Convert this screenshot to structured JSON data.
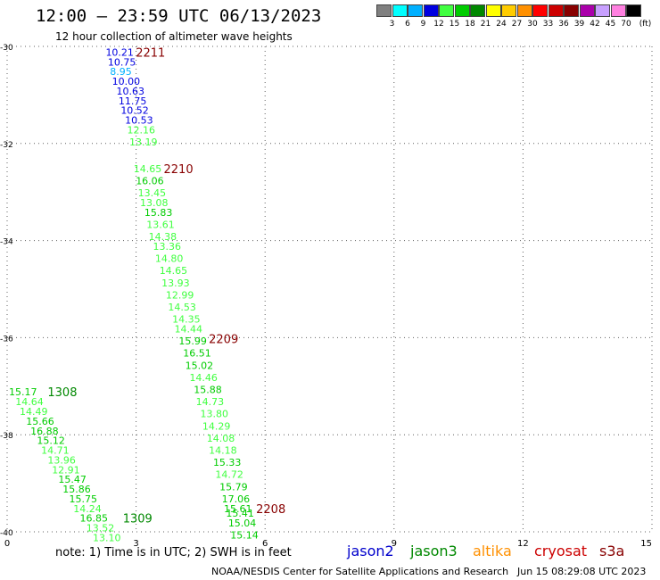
{
  "header": {
    "title": "12:00 – 23:59 UTC 06/13/2023",
    "subtitle": "12 hour collection of altimeter wave heights"
  },
  "colorbar": {
    "unit_label": "(ft)",
    "bins": [
      {
        "label": "3",
        "color": "#808080"
      },
      {
        "label": "6",
        "color": "#00ffff"
      },
      {
        "label": "9",
        "color": "#00b0ff"
      },
      {
        "label": "12",
        "color": "#0000e0"
      },
      {
        "label": "15",
        "color": "#40ff40"
      },
      {
        "label": "18",
        "color": "#00cc00"
      },
      {
        "label": "21",
        "color": "#008800"
      },
      {
        "label": "24",
        "color": "#ffff00"
      },
      {
        "label": "27",
        "color": "#ffcc00"
      },
      {
        "label": "30",
        "color": "#ff9000"
      },
      {
        "label": "33",
        "color": "#ff0000"
      },
      {
        "label": "36",
        "color": "#cc0000"
      },
      {
        "label": "39",
        "color": "#880000"
      },
      {
        "label": "42",
        "color": "#aa00aa"
      },
      {
        "label": "45",
        "color": "#c8a0ff"
      },
      {
        "label": "70",
        "color": "#ff80e0"
      },
      {
        "label": "",
        "color": "#000000"
      }
    ]
  },
  "chart_data": {
    "type": "scatter",
    "xlim": [
      0,
      15
    ],
    "ylim": [
      -40,
      -30
    ],
    "x_ticks": [
      {
        "value": 0,
        "label": "0"
      },
      {
        "value": 3,
        "label": "3"
      },
      {
        "value": 6,
        "label": "6"
      },
      {
        "value": 9,
        "label": "9"
      },
      {
        "value": 12,
        "label": "12"
      },
      {
        "value": 15,
        "label": "15"
      }
    ],
    "y_ticks": [
      {
        "value": -30,
        "label": "-30"
      },
      {
        "value": -32,
        "label": "-32"
      },
      {
        "value": -34,
        "label": "-34"
      },
      {
        "value": -36,
        "label": "-36"
      },
      {
        "value": -38,
        "label": "-38"
      },
      {
        "value": -40,
        "label": "-40"
      }
    ],
    "grid": true,
    "track_labels": [
      {
        "text": "2211",
        "x": 2.95,
        "y": -30.1,
        "color": "#880000"
      },
      {
        "text": "2210",
        "x": 3.6,
        "y": -32.5,
        "color": "#880000"
      },
      {
        "text": "2209",
        "x": 4.65,
        "y": -36.0,
        "color": "#880000"
      },
      {
        "text": "2208",
        "x": 5.75,
        "y": -39.5,
        "color": "#880000"
      },
      {
        "text": "1308",
        "x": 0.9,
        "y": -37.1,
        "color": "#008800"
      },
      {
        "text": "1309",
        "x": 2.65,
        "y": -39.7,
        "color": "#008800"
      }
    ],
    "points": [
      {
        "text": "10.21",
        "x": 2.25,
        "y": -30.1,
        "color": "#0000e0"
      },
      {
        "text": "10.75",
        "x": 2.3,
        "y": -30.3,
        "color": "#0000e0"
      },
      {
        "text": "8.95",
        "x": 2.35,
        "y": -30.5,
        "color": "#00b0ff"
      },
      {
        "text": "10.00",
        "x": 2.4,
        "y": -30.7,
        "color": "#0000e0"
      },
      {
        "text": "10.63",
        "x": 2.5,
        "y": -30.9,
        "color": "#0000e0"
      },
      {
        "text": "11.75",
        "x": 2.55,
        "y": -31.1,
        "color": "#0000e0"
      },
      {
        "text": "10.52",
        "x": 2.6,
        "y": -31.3,
        "color": "#0000e0"
      },
      {
        "text": "10.53",
        "x": 2.7,
        "y": -31.5,
        "color": "#0000e0"
      },
      {
        "text": "12.16",
        "x": 2.75,
        "y": -31.7,
        "color": "#40ff40"
      },
      {
        "text": "13.19",
        "x": 2.8,
        "y": -31.95,
        "color": "#40ff40"
      },
      {
        "text": "14.65",
        "x": 2.9,
        "y": -32.5,
        "color": "#40ff40"
      },
      {
        "text": "16.06",
        "x": 2.95,
        "y": -32.75,
        "color": "#00cc00"
      },
      {
        "text": "13.45",
        "x": 3.0,
        "y": -33.0,
        "color": "#40ff40"
      },
      {
        "text": "13.08",
        "x": 3.05,
        "y": -33.2,
        "color": "#40ff40"
      },
      {
        "text": "15.83",
        "x": 3.15,
        "y": -33.4,
        "color": "#00cc00"
      },
      {
        "text": "13.61",
        "x": 3.2,
        "y": -33.65,
        "color": "#40ff40"
      },
      {
        "text": "14.38",
        "x": 3.25,
        "y": -33.9,
        "color": "#40ff40"
      },
      {
        "text": "13.36",
        "x": 3.35,
        "y": -34.1,
        "color": "#40ff40"
      },
      {
        "text": "14.80",
        "x": 3.4,
        "y": -34.35,
        "color": "#40ff40"
      },
      {
        "text": "14.65",
        "x": 3.5,
        "y": -34.6,
        "color": "#40ff40"
      },
      {
        "text": "13.93",
        "x": 3.55,
        "y": -34.85,
        "color": "#40ff40"
      },
      {
        "text": "12.99",
        "x": 3.65,
        "y": -35.1,
        "color": "#40ff40"
      },
      {
        "text": "14.53",
        "x": 3.7,
        "y": -35.35,
        "color": "#40ff40"
      },
      {
        "text": "14.35",
        "x": 3.8,
        "y": -35.6,
        "color": "#40ff40"
      },
      {
        "text": "14.44",
        "x": 3.85,
        "y": -35.8,
        "color": "#40ff40"
      },
      {
        "text": "15.99",
        "x": 3.95,
        "y": -36.05,
        "color": "#00cc00"
      },
      {
        "text": "16.51",
        "x": 4.05,
        "y": -36.3,
        "color": "#00cc00"
      },
      {
        "text": "15.02",
        "x": 4.1,
        "y": -36.55,
        "color": "#00cc00"
      },
      {
        "text": "14.46",
        "x": 4.2,
        "y": -36.8,
        "color": "#40ff40"
      },
      {
        "text": "15.88",
        "x": 4.3,
        "y": -37.05,
        "color": "#00cc00"
      },
      {
        "text": "14.73",
        "x": 4.35,
        "y": -37.3,
        "color": "#40ff40"
      },
      {
        "text": "13.80",
        "x": 4.45,
        "y": -37.55,
        "color": "#40ff40"
      },
      {
        "text": "14.29",
        "x": 4.5,
        "y": -37.8,
        "color": "#40ff40"
      },
      {
        "text": "14.08",
        "x": 4.6,
        "y": -38.05,
        "color": "#40ff40"
      },
      {
        "text": "14.18",
        "x": 4.65,
        "y": -38.3,
        "color": "#40ff40"
      },
      {
        "text": "15.33",
        "x": 4.75,
        "y": -38.55,
        "color": "#00cc00"
      },
      {
        "text": "14.72",
        "x": 4.8,
        "y": -38.8,
        "color": "#40ff40"
      },
      {
        "text": "15.79",
        "x": 4.9,
        "y": -39.05,
        "color": "#00cc00"
      },
      {
        "text": "17.06",
        "x": 4.95,
        "y": -39.3,
        "color": "#00cc00"
      },
      {
        "text": "15.61",
        "x": 5.0,
        "y": -39.5,
        "color": "#00cc00"
      },
      {
        "text": "15.41",
        "x": 5.05,
        "y": -39.6,
        "color": "#00cc00"
      },
      {
        "text": "15.04",
        "x": 5.1,
        "y": -39.8,
        "color": "#00cc00"
      },
      {
        "text": "15.14",
        "x": 5.15,
        "y": -40.05,
        "color": "#00cc00"
      },
      {
        "text": "15.17",
        "x": 0.0,
        "y": -37.1,
        "color": "#00cc00"
      },
      {
        "text": "14.64",
        "x": 0.15,
        "y": -37.3,
        "color": "#40ff40"
      },
      {
        "text": "14.49",
        "x": 0.25,
        "y": -37.5,
        "color": "#40ff40"
      },
      {
        "text": "15.66",
        "x": 0.4,
        "y": -37.7,
        "color": "#00cc00"
      },
      {
        "text": "16.88",
        "x": 0.5,
        "y": -37.9,
        "color": "#00cc00"
      },
      {
        "text": "15.12",
        "x": 0.65,
        "y": -38.1,
        "color": "#00cc00"
      },
      {
        "text": "14.71",
        "x": 0.75,
        "y": -38.3,
        "color": "#40ff40"
      },
      {
        "text": "13.96",
        "x": 0.9,
        "y": -38.5,
        "color": "#40ff40"
      },
      {
        "text": "12.91",
        "x": 1.0,
        "y": -38.7,
        "color": "#40ff40"
      },
      {
        "text": "15.47",
        "x": 1.15,
        "y": -38.9,
        "color": "#00cc00"
      },
      {
        "text": "15.86",
        "x": 1.25,
        "y": -39.1,
        "color": "#00cc00"
      },
      {
        "text": "15.75",
        "x": 1.4,
        "y": -39.3,
        "color": "#00cc00"
      },
      {
        "text": "14.24",
        "x": 1.5,
        "y": -39.5,
        "color": "#40ff40"
      },
      {
        "text": "16.85",
        "x": 1.65,
        "y": -39.7,
        "color": "#00cc00"
      },
      {
        "text": "13.52",
        "x": 1.8,
        "y": -39.9,
        "color": "#40ff40"
      },
      {
        "text": "13.10",
        "x": 1.95,
        "y": -40.1,
        "color": "#40ff40"
      }
    ]
  },
  "footer": {
    "note": "note:  1) Time is in UTC;  2) SWH is in feet",
    "satellites": [
      {
        "label": "jason2",
        "color": "#0000cc"
      },
      {
        "label": "jason3",
        "color": "#008800"
      },
      {
        "label": "altika",
        "color": "#ff9000"
      },
      {
        "label": "cryosat",
        "color": "#cc0000"
      },
      {
        "label": "s3a",
        "color": "#880000"
      }
    ],
    "credit": "NOAA/NESDIS Center for Satellite Applications and Research",
    "generated": "Jun 15 08:29:08 UTC 2023"
  }
}
